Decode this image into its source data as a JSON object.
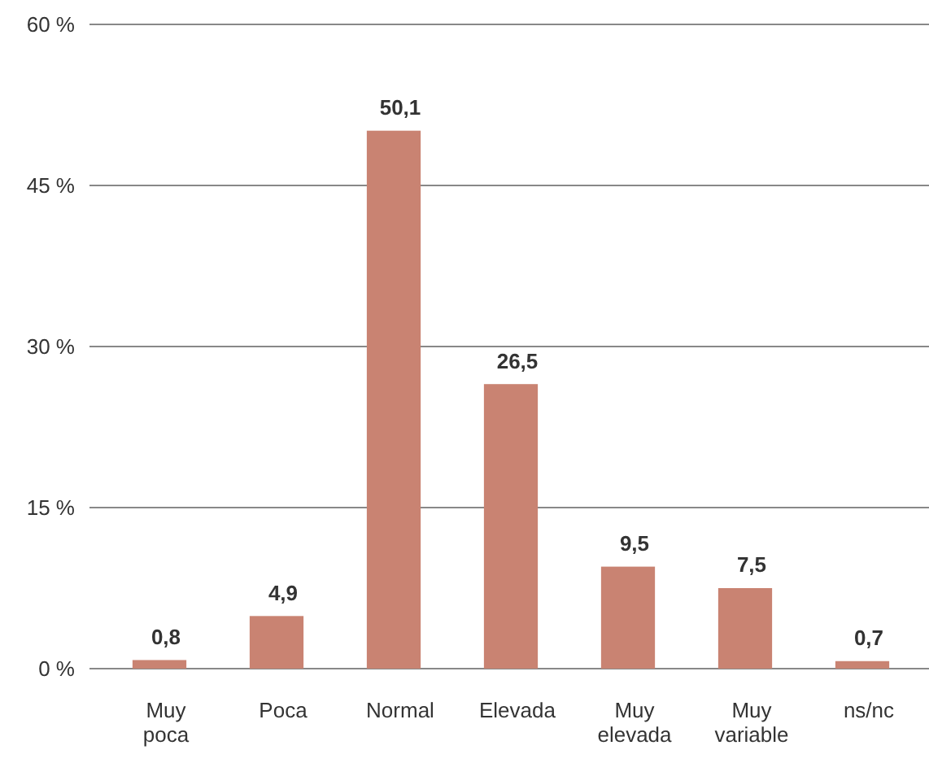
{
  "chart_data": {
    "type": "bar",
    "categories": [
      "Muy poca",
      "Poca",
      "Normal",
      "Elevada",
      "Muy elevada",
      "Muy variable",
      "ns/nc"
    ],
    "values": [
      0.8,
      4.9,
      50.1,
      26.5,
      9.5,
      7.5,
      0.7
    ],
    "value_labels": [
      "0,8",
      "4,9",
      "50,1",
      "26,5",
      "9,5",
      "7,5",
      "0,7"
    ],
    "color": "#c98372",
    "ylim": [
      0,
      60
    ],
    "yticks": [
      {
        "value": 0,
        "label": "0 %"
      },
      {
        "value": 15,
        "label": "15 %"
      },
      {
        "value": 30,
        "label": "30 %"
      },
      {
        "value": 45,
        "label": "45 %"
      },
      {
        "value": 60,
        "label": "60 %"
      }
    ],
    "grid": "y"
  }
}
